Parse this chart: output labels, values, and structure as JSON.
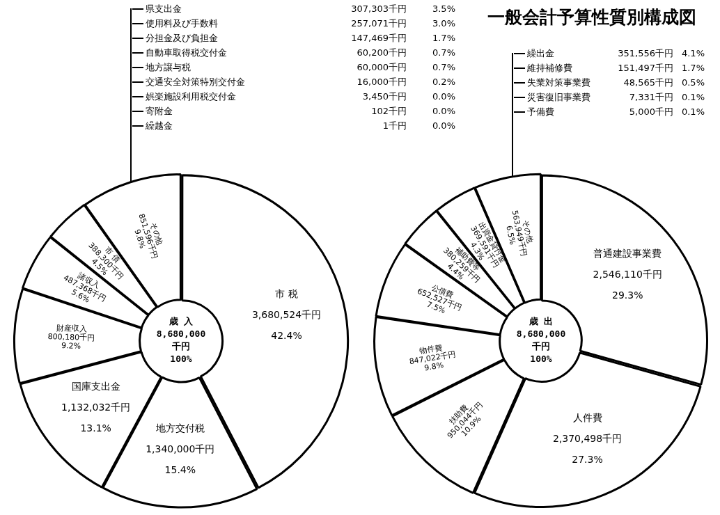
{
  "chart_data": [
    {
      "type": "donut",
      "categories": [
        "市 税",
        "地方交付税",
        "国庫支出金",
        "財産収入",
        "諸収入",
        "市 債",
        "その他"
      ],
      "values": [
        3680524,
        1340000,
        1132032,
        800180,
        487368,
        388300,
        851596
      ],
      "value_labels": [
        "3,680,524千円 42.4%",
        "1,340,000千円 15.4%",
        "1,132,032千円 13.1%",
        "800,180千円 9.2%",
        "487,368千円 5.6%",
        "388,300千円 4.5%",
        "851,596千円 9.8%"
      ],
      "colors": [
        "#ffffff",
        "#ffffff",
        "#ffffff",
        "#ffffff",
        "#ffffff",
        "#ffffff",
        "#ffffff"
      ],
      "annotations": [
        "歳 入\n8,680,000\n千円\n100%",
        "県支出金\t307,303千円\t3.5%",
        "使用料及び手数料\t257,071千円\t3.0%",
        "分担金及び負担金\t147,469千円\t1.7%",
        "自動車取得税交付金\t60,200千円\t0.7%",
        "地方譲与税\t60,000千円\t0.7%",
        "交通安全対策特別交付金\t16,000千円\t0.2%",
        "娯楽施設利用税交付金\t3,450千円\t0.0%",
        "寄附金\t102千円\t0.0%",
        "繰越金\t1千円\t0.0%"
      ]
    },
    {
      "type": "donut",
      "title": "一般会計予算性質別構成図",
      "categories": [
        "普通建設事業費",
        "人件費",
        "扶助費",
        "物件費",
        "公債費",
        "補助費等",
        "出資金貸付金",
        "その他"
      ],
      "values": [
        2546110,
        2370498,
        950044,
        847022,
        652527,
        380259,
        369591,
        563949
      ],
      "value_labels": [
        "2,546,110千円 29.3%",
        "2,370,498千円 27.3%",
        "950,044千円 10.9%",
        "847,022千円 9.8%",
        "652,527千円 7.5%",
        "380,259千円 4.4%",
        "369,591千円 4.3%",
        "563,949千円 6.5%"
      ],
      "colors": [
        "#ffffff",
        "#ffffff",
        "#ffffff",
        "#ffffff",
        "#ffffff",
        "#ffffff",
        "#ffffff",
        "#ffffff"
      ],
      "annotations": [
        "歳 出\n8,680,000\n千円\n100%",
        "繰出金\t351,556千円\t4.1%",
        "維持補修費\t151,497千円\t1.7%",
        "失業対策事業費\t48,565千円\t0.5%",
        "災害復旧事業費\t7,331千円\t0.1%",
        "予備費\t5,000千円\t0.1%"
      ]
    }
  ]
}
